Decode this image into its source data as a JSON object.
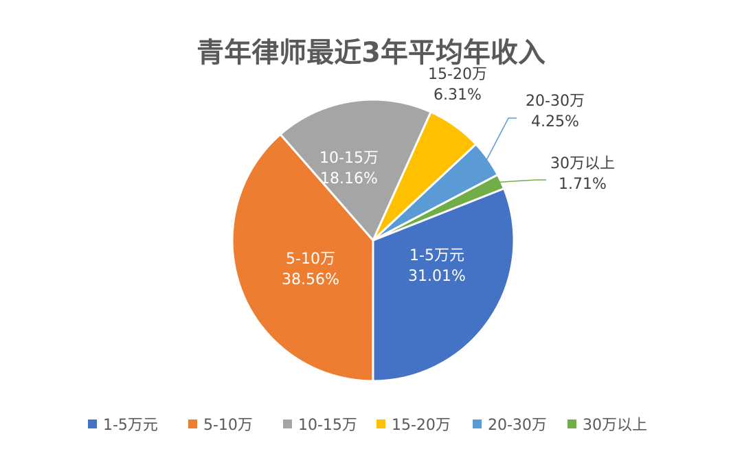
{
  "chart_data": {
    "type": "pie",
    "title": "青年律师最近3年平均年收入",
    "categories": [
      "1-5万元",
      "5-10万",
      "10-15万",
      "15-20万",
      "20-30万",
      "30万以上"
    ],
    "values": [
      31.01,
      38.56,
      18.16,
      6.31,
      4.25,
      1.71
    ],
    "data_labels": [
      "31.01%",
      "38.56%",
      "18.16%",
      "6.31%",
      "4.25%",
      "1.71%"
    ],
    "colors": [
      "#4472C4",
      "#ED7D31",
      "#A5A5A5",
      "#FFC000",
      "#5B9BD5",
      "#70AD47"
    ],
    "legend_position": "bottom",
    "start_direction": "clockwise from 1.71% slice boundary"
  }
}
